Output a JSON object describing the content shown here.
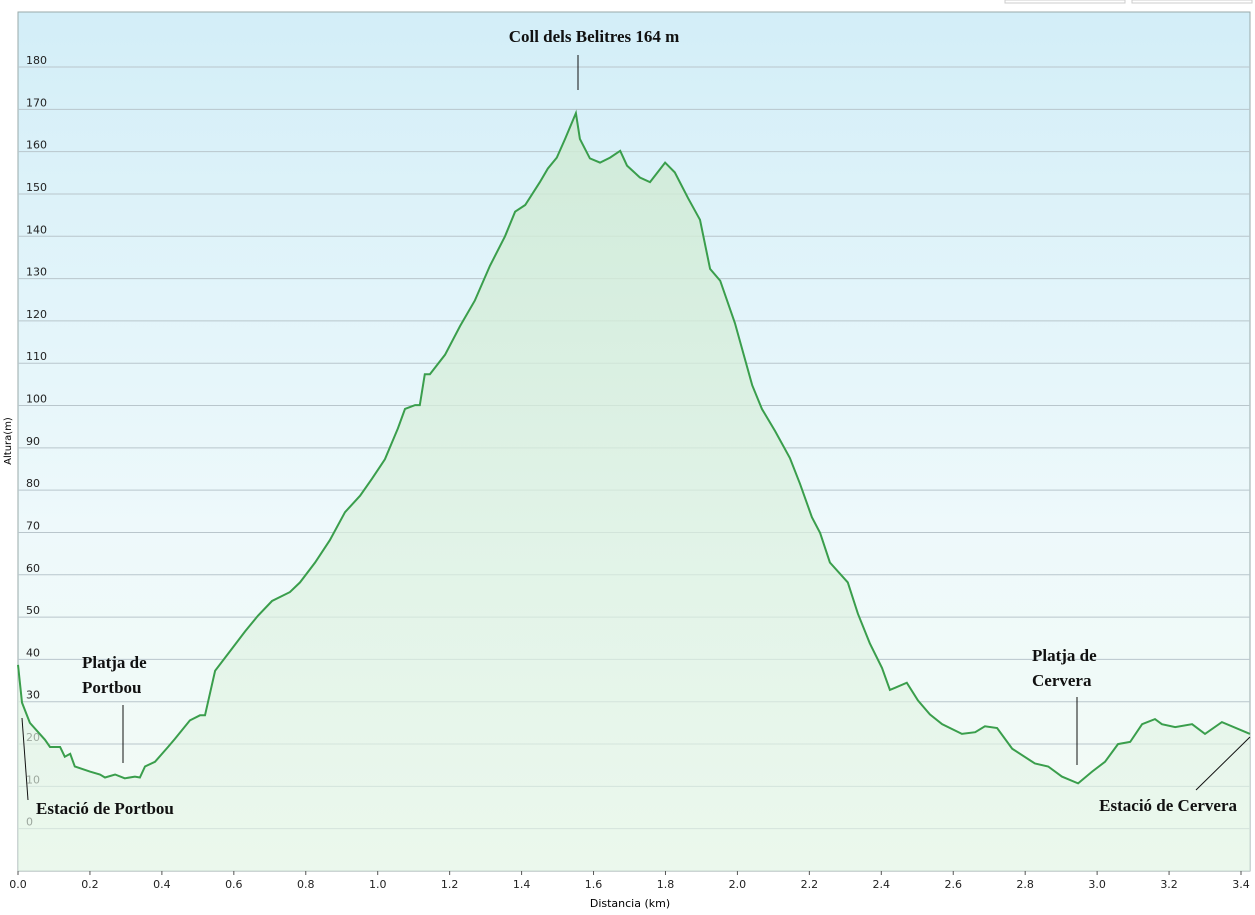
{
  "chart_data": {
    "type": "area-line",
    "x_label": "Distancia  (km)",
    "y_label": "Altura(m)",
    "x": [
      0,
      0.011,
      0.033,
      0.075,
      0.089,
      0.117,
      0.13,
      0.145,
      0.158,
      0.2,
      0.228,
      0.242,
      0.27,
      0.297,
      0.325,
      0.339,
      0.353,
      0.381,
      0.417,
      0.436,
      0.478,
      0.506,
      0.52,
      0.548,
      0.589,
      0.631,
      0.667,
      0.706,
      0.756,
      0.784,
      0.826,
      0.867,
      0.909,
      0.951,
      0.984,
      1.02,
      1.056,
      1.076,
      1.104,
      1.117,
      1.131,
      1.145,
      1.187,
      1.229,
      1.27,
      1.312,
      1.354,
      1.382,
      1.41,
      1.451,
      1.473,
      1.498,
      1.521,
      1.551,
      1.562,
      1.59,
      1.618,
      1.646,
      1.674,
      1.693,
      1.729,
      1.757,
      1.799,
      1.826,
      1.863,
      1.896,
      1.924,
      1.952,
      1.993,
      2.041,
      2.068,
      2.105,
      2.146,
      2.174,
      2.207,
      2.23,
      2.257,
      2.307,
      2.335,
      2.368,
      2.402,
      2.424,
      2.438,
      2.471,
      2.502,
      2.535,
      2.569,
      2.624,
      2.661,
      2.688,
      2.722,
      2.764,
      2.827,
      2.864,
      2.902,
      2.947,
      2.986,
      3.022,
      3.058,
      3.092,
      3.125,
      3.161,
      3.18,
      3.217,
      3.264,
      3.3,
      3.347,
      3.425
    ],
    "series": [
      {
        "color": "#3a9e4c",
        "values": [
          38.7,
          29.8,
          25,
          21,
          19.3,
          19.3,
          17,
          17.7,
          14.7,
          13.5,
          12.8,
          12.1,
          12.8,
          11.9,
          12.3,
          12.1,
          14.7,
          15.8,
          19.3,
          21.2,
          25.6,
          26.8,
          26.8,
          37.3,
          41.9,
          46.6,
          50.3,
          53.8,
          55.9,
          58.2,
          62.9,
          68.2,
          74.8,
          78.7,
          82.7,
          87.3,
          94.6,
          99.2,
          100.1,
          100.1,
          107.4,
          107.4,
          112,
          118.8,
          124.8,
          133,
          140,
          145.8,
          147.4,
          152.8,
          156,
          158.6,
          163,
          169.1,
          163,
          158.4,
          157.4,
          158.6,
          160.2,
          156.7,
          153.9,
          152.8,
          157.4,
          155.1,
          149,
          143.9,
          132.3,
          129.5,
          119.5,
          104.8,
          99.2,
          93.9,
          87.6,
          81.5,
          73.6,
          69.9,
          62.9,
          58.2,
          50.8,
          43.8,
          38,
          32.8,
          33.3,
          34.5,
          30.3,
          27,
          24.7,
          22.4,
          22.8,
          24.2,
          23.8,
          18.9,
          15.4,
          14.7,
          12.3,
          10.7,
          13.5,
          15.8,
          20,
          20.5,
          24.7,
          25.9,
          24.7,
          24,
          24.7,
          22.4,
          25.2,
          22.4
        ]
      }
    ],
    "xlim": [
      0,
      3.425
    ],
    "ylim": [
      -10,
      193
    ],
    "xticks": [
      {
        "value": 0,
        "label": "0.0"
      },
      0.2,
      0.4,
      0.6,
      0.8,
      {
        "value": 1,
        "label": "1.0"
      },
      1.2,
      1.4,
      1.6,
      1.8,
      {
        "value": 2,
        "label": "2.0"
      },
      2.2,
      2.4,
      2.6,
      2.8,
      {
        "value": 3,
        "label": "3.0"
      },
      3.2,
      3.4
    ],
    "yticks": [
      0,
      10,
      20,
      30,
      40,
      50,
      60,
      70,
      80,
      90,
      100,
      110,
      120,
      130,
      140,
      150,
      160,
      170,
      180
    ],
    "grid": true,
    "annotations": [
      {
        "lines": [
          "Coll dels Belitres 164 m"
        ]
      },
      {
        "lines": [
          "Platja de",
          "Portbou"
        ]
      },
      {
        "lines": [
          "Estació de Portbou"
        ]
      },
      {
        "lines": [
          "Platja de",
          "Cervera"
        ]
      },
      {
        "lines": [
          "Estació de Cervera"
        ]
      }
    ]
  }
}
